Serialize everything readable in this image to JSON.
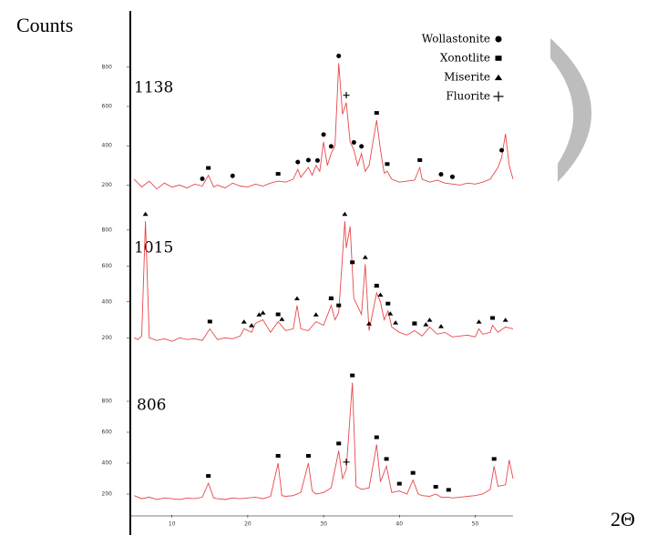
{
  "chart_data": [
    {
      "type": "line",
      "sample": "1138",
      "color": "#e8474a",
      "xlim": [
        4.5,
        55
      ],
      "ylim": [
        100,
        850
      ],
      "yticks": [
        200,
        400,
        600,
        800
      ],
      "x": [
        5,
        6,
        7,
        8,
        9,
        10,
        11,
        12,
        13,
        14,
        14.8,
        15.5,
        16,
        17,
        18,
        19,
        20,
        21,
        22,
        23,
        24,
        25,
        26,
        26.6,
        27,
        28,
        28.5,
        29,
        29.5,
        30,
        30.5,
        31,
        31.5,
        32,
        32.5,
        33,
        33.5,
        34,
        34.5,
        35,
        35.5,
        36,
        37,
        37.5,
        38,
        38.4,
        39,
        40,
        41,
        42,
        42.7,
        43,
        44,
        45,
        46,
        47,
        48,
        49,
        50,
        51,
        52,
        53,
        53.5,
        54,
        54.5,
        55
      ],
      "values": [
        230,
        190,
        220,
        180,
        210,
        190,
        200,
        185,
        205,
        195,
        250,
        190,
        200,
        185,
        210,
        195,
        190,
        205,
        195,
        210,
        220,
        215,
        230,
        280,
        240,
        290,
        250,
        300,
        270,
        420,
        300,
        360,
        400,
        820,
        560,
        620,
        420,
        380,
        300,
        360,
        270,
        300,
        530,
        380,
        260,
        270,
        230,
        215,
        220,
        225,
        290,
        230,
        215,
        225,
        210,
        205,
        200,
        210,
        205,
        215,
        230,
        290,
        340,
        460,
        300,
        230
      ],
      "markers": [
        [
          14,
          18,
          26.6,
          28,
          29.2,
          30,
          31,
          32,
          34,
          35,
          45.5,
          47,
          53.5
        ],
        [
          14.8,
          24,
          37,
          38.4,
          42.7
        ],
        [],
        [
          33
        ]
      ]
    },
    {
      "type": "line",
      "sample": "1015",
      "color": "#e8474a",
      "xlim": [
        4.5,
        55
      ],
      "ylim": [
        100,
        850
      ],
      "yticks": [
        200,
        400,
        600,
        800
      ],
      "x": [
        5,
        5.5,
        6,
        6.5,
        7,
        8,
        9,
        10,
        11,
        12,
        13,
        14,
        15,
        16,
        17,
        18,
        19,
        19.5,
        20.5,
        21,
        22,
        23,
        24,
        25,
        26,
        26.5,
        27,
        28,
        29,
        30,
        31,
        31.5,
        32,
        32.8,
        33,
        33.5,
        34,
        35,
        35.5,
        36,
        37,
        37.5,
        38,
        38.5,
        39,
        40,
        41,
        42,
        43,
        44,
        45,
        46,
        47,
        48,
        49,
        50,
        50.5,
        51,
        52,
        52.3,
        53,
        54,
        55
      ],
      "values": [
        200,
        190,
        210,
        850,
        200,
        185,
        195,
        180,
        200,
        190,
        195,
        185,
        250,
        190,
        200,
        195,
        210,
        250,
        230,
        280,
        300,
        230,
        290,
        240,
        250,
        380,
        250,
        240,
        290,
        270,
        380,
        300,
        340,
        850,
        700,
        820,
        420,
        330,
        610,
        240,
        450,
        400,
        300,
        350,
        260,
        230,
        215,
        240,
        210,
        260,
        220,
        230,
        205,
        210,
        215,
        205,
        250,
        220,
        230,
        270,
        230,
        260,
        250
      ],
      "markers": [
        [],
        [
          15,
          24,
          31,
          32,
          33.8,
          37,
          38.5,
          42,
          52.3
        ],
        [
          6.5,
          19.5,
          20.5,
          21.5,
          22,
          24.5,
          26.5,
          29,
          31,
          32.8,
          35.5,
          36,
          37,
          37.5,
          38.8,
          39.5,
          42,
          43.5,
          44,
          45.5,
          50.5,
          54
        ],
        []
      ]
    },
    {
      "type": "line",
      "sample": "806",
      "color": "#e8474a",
      "xlim": [
        4.5,
        55
      ],
      "ylim": [
        100,
        900
      ],
      "yticks": [
        200,
        400,
        600,
        800
      ],
      "x": [
        5,
        6,
        7,
        8,
        9,
        10,
        11,
        12,
        13,
        14,
        14.8,
        15.5,
        16,
        17,
        18,
        19,
        20,
        21,
        22,
        23,
        24,
        24.5,
        25,
        26,
        27,
        28,
        28.5,
        29,
        30,
        31,
        32,
        32.5,
        33,
        33.8,
        34.3,
        35,
        36,
        37,
        37.5,
        38.3,
        39,
        40,
        41,
        41.8,
        42.5,
        43,
        44,
        44.8,
        45.5,
        46.5,
        47,
        48,
        49,
        50,
        51,
        52,
        52.5,
        53,
        54,
        54.5,
        55
      ],
      "values": [
        190,
        170,
        180,
        165,
        175,
        170,
        165,
        175,
        170,
        180,
        270,
        175,
        170,
        165,
        175,
        170,
        175,
        180,
        170,
        185,
        400,
        190,
        185,
        190,
        210,
        400,
        220,
        200,
        210,
        240,
        480,
        300,
        360,
        920,
        250,
        230,
        240,
        520,
        280,
        380,
        210,
        220,
        200,
        290,
        200,
        190,
        185,
        200,
        180,
        180,
        175,
        180,
        185,
        190,
        200,
        230,
        380,
        250,
        260,
        420,
        300
      ],
      "markers": [
        [],
        [
          14.8,
          24,
          28,
          32,
          33.8,
          37,
          38.3,
          40,
          41.8,
          44.8,
          46.5,
          52.5
        ],
        [],
        [
          33
        ]
      ],
      "xticks": [
        10,
        20,
        30,
        40,
        50
      ]
    }
  ],
  "y_label": "Counts",
  "x_label": "2Θ",
  "legend": [
    "Wollastonite",
    "Xonotlite",
    "Miserite",
    "Fluorite"
  ]
}
